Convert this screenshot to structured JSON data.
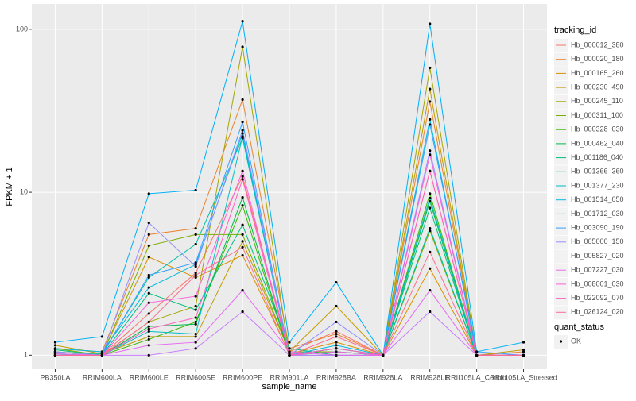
{
  "chart_data": {
    "type": "line",
    "x_label": "sample_name",
    "y_label": "FPKM + 1",
    "log_y": true,
    "grid": true,
    "legend_title": "tracking_id",
    "legend2_title": "quant_status",
    "legend2_entries": [
      "OK"
    ],
    "categories": [
      "PB350LA",
      "RRIM600LA",
      "RRIM600LE",
      "RRIM600SE",
      "RRIM600PE",
      "RRIM901LA",
      "RRIM928BA",
      "RRIM928LA",
      "RRIM928LE",
      "RRII105LA_Control",
      "RRII105LA_Stressed"
    ],
    "ylim": [
      0.82,
      143
    ],
    "yticks": [
      1,
      10,
      100
    ],
    "series": [
      {
        "name": "Hb_000012_380",
        "color": "#F8766D",
        "values": [
          1.05,
          1.0,
          1.8,
          3.2,
          12.5,
          1.05,
          1.4,
          1.0,
          13.5,
          1.0,
          1.0
        ]
      },
      {
        "name": "Hb_000020_180",
        "color": "#EA8331",
        "values": [
          1.1,
          1.05,
          5.5,
          6.0,
          37,
          1.1,
          1.35,
          1.0,
          36,
          1.0,
          1.05
        ]
      },
      {
        "name": "Hb_000165_260",
        "color": "#D89000",
        "values": [
          1.0,
          1.02,
          4.0,
          3.0,
          4.1,
          1.02,
          1.2,
          1.0,
          3.4,
          1.0,
          1.0
        ]
      },
      {
        "name": "Hb_000230_490",
        "color": "#C09B00",
        "values": [
          1.15,
          1.02,
          1.3,
          1.3,
          5.0,
          1.05,
          2.0,
          1.0,
          43,
          1.0,
          1.08
        ]
      },
      {
        "name": "Hb_000245_110",
        "color": "#A3A500",
        "values": [
          1.05,
          1.0,
          1.6,
          2.0,
          78,
          1.0,
          1.1,
          1.0,
          58,
          1.0,
          1.0
        ]
      },
      {
        "name": "Hb_000311_100",
        "color": "#7CAE00",
        "values": [
          1.1,
          1.0,
          4.7,
          5.5,
          5.5,
          1.05,
          1.05,
          1.0,
          5.8,
          1.0,
          1.0
        ]
      },
      {
        "name": "Hb_000328_030",
        "color": "#39B600",
        "values": [
          1.05,
          1.0,
          1.25,
          1.6,
          8.3,
          1.0,
          1.1,
          1.0,
          9.8,
          1.0,
          1.0
        ]
      },
      {
        "name": "Hb_000462_040",
        "color": "#00BB4E",
        "values": [
          1.0,
          1.0,
          1.5,
          1.55,
          9.3,
          1.0,
          1.05,
          1.0,
          8.8,
          1.0,
          1.0
        ]
      },
      {
        "name": "Hb_001186_040",
        "color": "#00BF7D",
        "values": [
          1.08,
          1.0,
          2.4,
          1.9,
          6.3,
          1.1,
          1.0,
          1.0,
          8.0,
          1.0,
          1.0
        ]
      },
      {
        "name": "Hb_001366_360",
        "color": "#00C1A3",
        "values": [
          1.0,
          1.02,
          3.0,
          4.8,
          21.5,
          1.0,
          1.0,
          1.0,
          6.0,
          1.0,
          1.0
        ]
      },
      {
        "name": "Hb_001377_230",
        "color": "#00BFC4",
        "values": [
          1.02,
          1.0,
          1.4,
          1.35,
          22,
          1.0,
          1.05,
          1.0,
          9.2,
          1.0,
          1.0
        ]
      },
      {
        "name": "Hb_001514_050",
        "color": "#00BAE0",
        "values": [
          1.1,
          1.05,
          2.6,
          3.6,
          23,
          1.0,
          1.15,
          1.0,
          28,
          1.0,
          1.0
        ]
      },
      {
        "name": "Hb_001712_030",
        "color": "#00B0F6",
        "values": [
          1.2,
          1.3,
          9.8,
          10.3,
          112,
          1.2,
          2.8,
          1.0,
          108,
          1.05,
          1.2
        ]
      },
      {
        "name": "Hb_003090_190",
        "color": "#35A2FF",
        "values": [
          1.0,
          1.0,
          3.1,
          3.7,
          27,
          1.0,
          1.1,
          1.0,
          26,
          1.05,
          1.0
        ]
      },
      {
        "name": "Hb_005000_150",
        "color": "#9590FF",
        "values": [
          1.05,
          1.0,
          6.5,
          3.5,
          24,
          1.0,
          1.6,
          1.0,
          18,
          1.0,
          1.0
        ]
      },
      {
        "name": "Hb_005827_020",
        "color": "#C77CFF",
        "values": [
          1.0,
          1.0,
          1.0,
          1.1,
          1.85,
          1.0,
          1.0,
          1.0,
          1.85,
          1.0,
          1.0
        ]
      },
      {
        "name": "Hb_007227_030",
        "color": "#E76BF3",
        "values": [
          1.02,
          1.0,
          1.15,
          1.2,
          2.5,
          1.05,
          1.0,
          1.0,
          2.5,
          1.0,
          1.0
        ]
      },
      {
        "name": "Hb_008001_030",
        "color": "#FA62DB",
        "values": [
          1.0,
          1.0,
          2.1,
          2.3,
          13.5,
          1.0,
          1.05,
          1.0,
          17,
          1.0,
          1.0
        ]
      },
      {
        "name": "Hb_022092_070",
        "color": "#FF62BC",
        "values": [
          1.0,
          1.0,
          1.45,
          1.7,
          12,
          1.0,
          1.1,
          1.0,
          13.5,
          1.0,
          1.0
        ]
      },
      {
        "name": "Hb_026124_020",
        "color": "#FF6C91",
        "values": [
          1.0,
          1.0,
          1.6,
          3.1,
          4.6,
          1.0,
          1.3,
          1.0,
          4.3,
          1.0,
          1.0
        ]
      }
    ]
  }
}
